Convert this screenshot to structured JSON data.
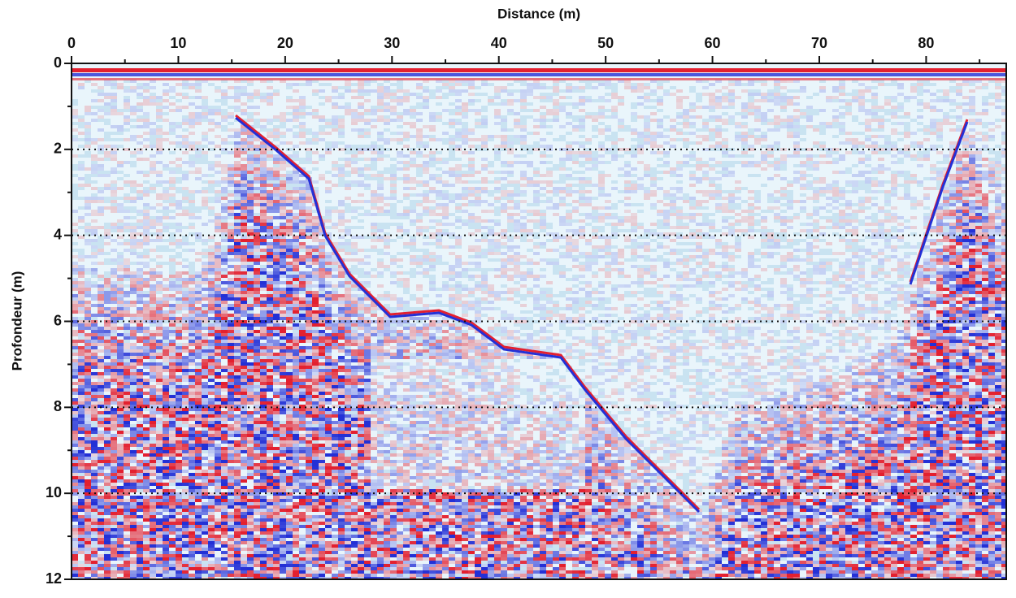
{
  "chart_data": {
    "type": "radargram",
    "xlabel": "Distance (m)",
    "ylabel": "Profondeur (m)",
    "xlim": [
      0,
      87.5
    ],
    "ylim": [
      0,
      12
    ],
    "y_inverted": true,
    "xticks": [
      0,
      10,
      20,
      30,
      40,
      50,
      60,
      70,
      80
    ],
    "xminorticks": [
      5,
      15,
      25,
      35,
      45,
      55,
      65,
      75,
      85
    ],
    "yticks": [
      0,
      2,
      4,
      6,
      8,
      10,
      12
    ],
    "yminorticks": [
      1,
      3,
      5,
      7,
      9,
      11
    ],
    "grid": "y",
    "positive_color": "#e3202f",
    "negative_color": "#2330d6",
    "background_color": "#e9f5fb"
  }
}
